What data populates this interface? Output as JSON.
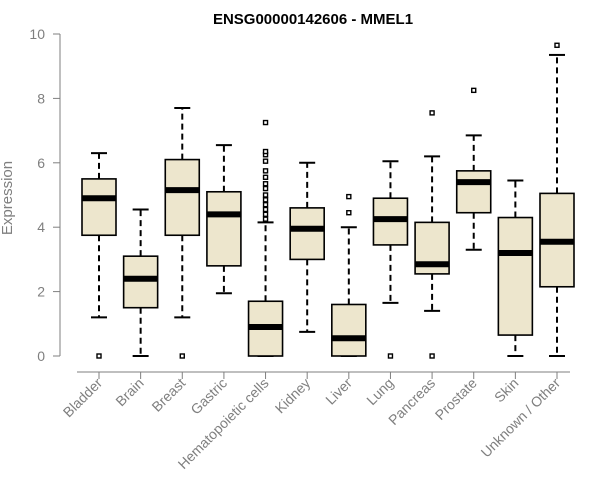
{
  "chart_data": {
    "type": "boxplot",
    "title": "ENSG00000142606 - MMEL1",
    "xlabel": "",
    "ylabel": "Expression",
    "ylim": [
      0,
      10
    ],
    "yticks": [
      0,
      2,
      4,
      6,
      8,
      10
    ],
    "box_fill": "#ede6cd",
    "categories": [
      "Bladder",
      "Brain",
      "Breast",
      "Gastric",
      "Hematopoietic cells",
      "Kidney",
      "Liver",
      "Lung",
      "Pancreas",
      "Prostate",
      "Skin",
      "Unknown / Other"
    ],
    "boxes": [
      {
        "min": 1.2,
        "q1": 3.75,
        "median": 4.9,
        "q3": 5.5,
        "max": 6.3,
        "outliers": [
          0.0
        ]
      },
      {
        "min": 0.0,
        "q1": 1.5,
        "median": 2.4,
        "q3": 3.1,
        "max": 4.55,
        "outliers": []
      },
      {
        "min": 1.2,
        "q1": 3.75,
        "median": 5.15,
        "q3": 6.1,
        "max": 7.7,
        "outliers": [
          0.0
        ]
      },
      {
        "min": 1.95,
        "q1": 2.8,
        "median": 4.4,
        "q3": 5.1,
        "max": 6.55,
        "outliers": []
      },
      {
        "min": 0.0,
        "q1": 0.0,
        "median": 0.9,
        "q3": 1.7,
        "max": 4.15,
        "outliers": [
          4.25,
          4.4,
          4.55,
          4.7,
          4.85,
          5.0,
          5.2,
          5.35,
          5.55,
          5.75,
          6.05,
          6.25,
          6.35,
          7.25
        ]
      },
      {
        "min": 0.75,
        "q1": 3.0,
        "median": 3.95,
        "q3": 4.6,
        "max": 6.0,
        "outliers": []
      },
      {
        "min": 0.0,
        "q1": 0.0,
        "median": 0.55,
        "q3": 1.6,
        "max": 4.0,
        "outliers": [
          4.45,
          4.95
        ]
      },
      {
        "min": 1.65,
        "q1": 3.45,
        "median": 4.25,
        "q3": 4.9,
        "max": 6.05,
        "outliers": [
          0.0
        ]
      },
      {
        "min": 1.4,
        "q1": 2.55,
        "median": 2.85,
        "q3": 4.15,
        "max": 6.2,
        "outliers": [
          0.0,
          7.55
        ]
      },
      {
        "min": 3.3,
        "q1": 4.45,
        "median": 5.4,
        "q3": 5.75,
        "max": 6.85,
        "outliers": [
          8.25
        ]
      },
      {
        "min": 0.0,
        "q1": 0.65,
        "median": 3.2,
        "q3": 4.3,
        "max": 5.45,
        "outliers": []
      },
      {
        "min": 0.0,
        "q1": 2.15,
        "median": 3.55,
        "q3": 5.05,
        "max": 9.35,
        "outliers": [
          9.65
        ]
      }
    ]
  }
}
